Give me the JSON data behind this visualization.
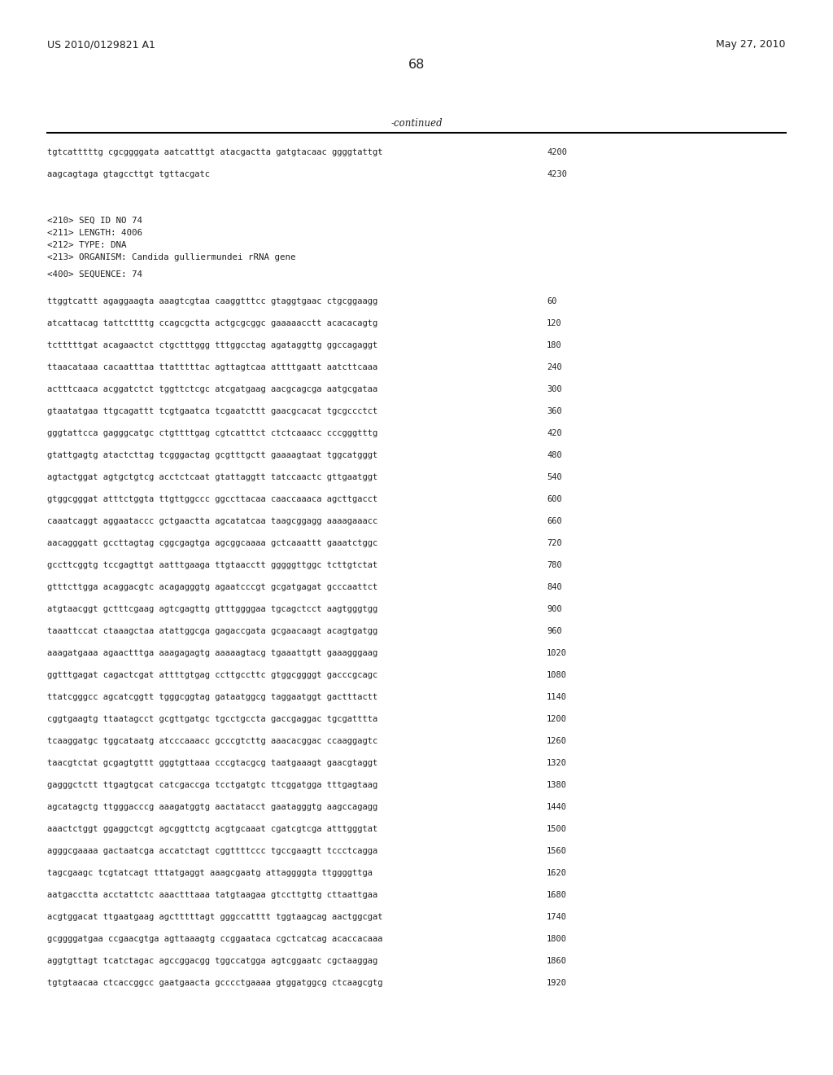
{
  "header_left": "US 2010/0129821 A1",
  "header_right": "May 27, 2010",
  "page_number": "68",
  "continued_label": "-continued",
  "background_color": "#ffffff",
  "text_color": "#231f20",
  "line_color": "#000000",
  "header_fontsize": 9.0,
  "page_num_fontsize": 11.5,
  "meta_fontsize": 7.8,
  "seq_fontsize": 7.5,
  "continued_fontsize": 8.5,
  "continued_lines": [
    [
      "tgtcatttttg cgcggggata aatcatttgt atacgactta gatgtacaac ggggtattgt",
      "4200"
    ],
    [
      "aagcagtaga gtagccttgt tgttacgatc",
      "4230"
    ]
  ],
  "metadata_lines": [
    "<210> SEQ ID NO 74",
    "<211> LENGTH: 4006",
    "<212> TYPE: DNA",
    "<213> ORGANISM: Candida gulliermundei rRNA gene",
    "",
    "<400> SEQUENCE: 74"
  ],
  "sequence_lines": [
    [
      "ttggtcattt agaggaagta aaagtcgtaa caaggtttcc gtaggtgaac ctgcggaagg",
      "60"
    ],
    [
      "atcattacag tattcttttg ccagcgctta actgcgcggc gaaaaacctt acacacagtg",
      "120"
    ],
    [
      "tctttttgat acagaactct ctgctttggg tttggcctag agataggttg ggccagaggt",
      "180"
    ],
    [
      "ttaacataaa cacaatttaa ttatttttac agttagtcaa attttgaatt aatcttcaaa",
      "240"
    ],
    [
      "actttcaaca acggatctct tggttctcgc atcgatgaag aacgcagcga aatgcgataa",
      "300"
    ],
    [
      "gtaatatgaa ttgcagattt tcgtgaatca tcgaatcttt gaacgcacat tgcgccctct",
      "360"
    ],
    [
      "gggtattcca gagggcatgc ctgttttgag cgtcatttct ctctcaaacc cccgggtttg",
      "420"
    ],
    [
      "gtattgagtg atactcttag tcgggactag gcgtttgctt gaaaagtaat tggcatgggt",
      "480"
    ],
    [
      "agtactggat agtgctgtcg acctctcaat gtattaggtt tatccaactc gttgaatggt",
      "540"
    ],
    [
      "gtggcgggat atttctggta ttgttggccc ggccttacaa caaccaaaca agcttgacct",
      "600"
    ],
    [
      "caaatcaggt aggaataccc gctgaactta agcatatcaa taagcggagg aaaagaaacc",
      "660"
    ],
    [
      "aacagggatt gccttagtag cggcgagtga agcggcaaaa gctcaaattt gaaatctggc",
      "720"
    ],
    [
      "gccttcggtg tccgagttgt aatttgaaga ttgtaacctt gggggttggc tcttgtctat",
      "780"
    ],
    [
      "gtttcttgga acaggacgtc acagagggtg agaatcccgt gcgatgagat gcccaattct",
      "840"
    ],
    [
      "atgtaacggt gctttcgaag agtcgagttg gtttggggaa tgcagctcct aagtgggtgg",
      "900"
    ],
    [
      "taaattccat ctaaagctaa atattggcga gagaccgata gcgaacaagt acagtgatgg",
      "960"
    ],
    [
      "aaagatgaaa agaactttga aaagagagtg aaaaagtacg tgaaattgtt gaaagggaag",
      "1020"
    ],
    [
      "ggtttgagat cagactcgat attttgtgag ccttgccttc gtggcggggt gacccgcagc",
      "1080"
    ],
    [
      "ttatcgggcc agcatcggtt tgggcggtag gataatggcg taggaatggt gactttactt",
      "1140"
    ],
    [
      "cggtgaagtg ttaatagcct gcgttgatgc tgcctgccta gaccgaggac tgcgatttta",
      "1200"
    ],
    [
      "tcaaggatgc tggcataatg atcccaaacc gcccgtcttg aaacacggac ccaaggagtc",
      "1260"
    ],
    [
      "taacgtctat gcgagtgttt gggtgttaaa cccgtacgcg taatgaaagt gaacgtaggt",
      "1320"
    ],
    [
      "gagggctctt ttgagtgcat catcgaccga tcctgatgtc ttcggatgga tttgagtaag",
      "1380"
    ],
    [
      "agcatagctg ttgggacccg aaagatggtg aactatacct gaatagggtg aagccagagg",
      "1440"
    ],
    [
      "aaactctggt ggaggctcgt agcggttctg acgtgcaaat cgatcgtcga atttgggtat",
      "1500"
    ],
    [
      "agggcgaaaa gactaatcga accatctagt cggttttccc tgccgaagtt tccctcagga",
      "1560"
    ],
    [
      "tagcgaagc tcgtatcagt tttatgaggt aaagcgaatg attaggggta ttggggttga",
      "1620"
    ],
    [
      "aatgacctta acctattctc aaactttaaa tatgtaagaa gtccttgttg cttaattgaa",
      "1680"
    ],
    [
      "acgtggacat ttgaatgaag agctttttagt gggccatttt tggtaagcag aactggcgat",
      "1740"
    ],
    [
      "gcggggatgaa ccgaacgtga agttaaagtg ccggaataca cgctcatcag acaccacaaa",
      "1800"
    ],
    [
      "aggtgttagt tcatctagac agccggacgg tggccatgga agtcggaatc cgctaaggag",
      "1860"
    ],
    [
      "tgtgtaacaa ctcaccggcc gaatgaacta gcccctgaaaa gtggatggcg ctcaagcgtg",
      "1920"
    ]
  ]
}
